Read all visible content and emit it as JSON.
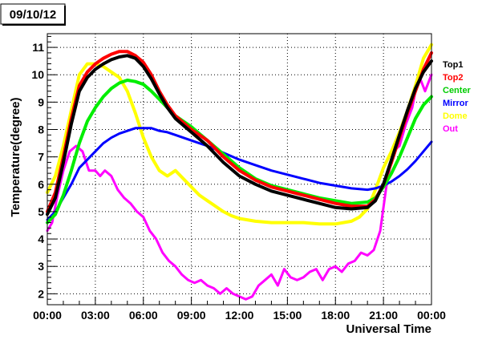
{
  "chart_data": {
    "type": "line",
    "title": "09/10/12",
    "xlabel": "Universal Time",
    "ylabel": "Temperature(degree)",
    "xlim": [
      0,
      24
    ],
    "ylim": [
      1.6,
      11.5
    ],
    "grid": true,
    "legend_position": "right",
    "x_ticks": [
      {
        "v": 0,
        "label": "00:00"
      },
      {
        "v": 3,
        "label": "03:00"
      },
      {
        "v": 6,
        "label": "06:00"
      },
      {
        "v": 9,
        "label": "09:00"
      },
      {
        "v": 12,
        "label": "12:00"
      },
      {
        "v": 15,
        "label": "15:00"
      },
      {
        "v": 18,
        "label": "18:00"
      },
      {
        "v": 21,
        "label": "21:00"
      },
      {
        "v": 24,
        "label": "00:00"
      }
    ],
    "y_ticks": [
      {
        "v": 2,
        "label": "2"
      },
      {
        "v": 3,
        "label": "3"
      },
      {
        "v": 4,
        "label": "4"
      },
      {
        "v": 5,
        "label": "5"
      },
      {
        "v": 6,
        "label": "6"
      },
      {
        "v": 7,
        "label": "7"
      },
      {
        "v": 8,
        "label": "8"
      },
      {
        "v": 9,
        "label": "9"
      },
      {
        "v": 10,
        "label": "10"
      },
      {
        "v": 11,
        "label": "11"
      }
    ],
    "series": [
      {
        "name": "Out",
        "color": "#ff00ff",
        "width": 3,
        "x": [
          0,
          0.3,
          0.6,
          1.0,
          1.4,
          1.8,
          2.2,
          2.6,
          3.0,
          3.3,
          3.6,
          4.0,
          4.4,
          4.8,
          5.2,
          5.6,
          6.0,
          6.4,
          6.8,
          7.2,
          7.6,
          8.0,
          8.4,
          8.8,
          9.2,
          9.6,
          10.0,
          10.4,
          10.8,
          11.2,
          11.6,
          12.0,
          12.4,
          12.8,
          13.2,
          13.6,
          14.0,
          14.4,
          14.8,
          15.2,
          15.6,
          16.0,
          16.4,
          16.8,
          17.2,
          17.6,
          18.0,
          18.4,
          18.8,
          19.2,
          19.6,
          20.0,
          20.4,
          20.8,
          21.2,
          21.6,
          22.0,
          22.4,
          22.8,
          23.2,
          23.6,
          24.0
        ],
        "y": [
          4.3,
          4.6,
          5.5,
          6.5,
          7.2,
          7.4,
          7.2,
          6.5,
          6.5,
          6.3,
          6.5,
          6.3,
          5.8,
          5.5,
          5.3,
          5.0,
          4.8,
          4.3,
          4.0,
          3.5,
          3.2,
          3.0,
          2.7,
          2.5,
          2.4,
          2.5,
          2.3,
          2.2,
          2.0,
          2.2,
          2.0,
          1.9,
          1.8,
          1.9,
          2.3,
          2.5,
          2.7,
          2.3,
          2.9,
          2.6,
          2.5,
          2.6,
          2.8,
          2.9,
          2.5,
          2.9,
          3.0,
          2.8,
          3.1,
          3.2,
          3.5,
          3.4,
          3.6,
          4.3,
          6.0,
          7.2,
          7.4,
          8.2,
          8.8,
          10.0,
          9.4,
          10.0
        ]
      },
      {
        "name": "Dome",
        "color": "#ffff00",
        "width": 4,
        "x": [
          0,
          0.5,
          1.0,
          1.5,
          2.0,
          2.5,
          3.0,
          3.5,
          4.0,
          4.5,
          5.0,
          5.5,
          6.0,
          6.5,
          7.0,
          7.5,
          8.0,
          8.5,
          9.0,
          9.5,
          10.0,
          10.5,
          11.0,
          11.5,
          12.0,
          13.0,
          14.0,
          15.0,
          16.0,
          17.0,
          18.0,
          19.0,
          19.5,
          20.0,
          20.5,
          21.0,
          21.5,
          22.0,
          22.5,
          23.0,
          23.5,
          24.0
        ],
        "y": [
          5.7,
          6.3,
          7.4,
          8.7,
          10.0,
          10.4,
          10.4,
          10.3,
          10.1,
          9.9,
          9.4,
          8.6,
          7.7,
          7.0,
          6.5,
          6.3,
          6.5,
          6.2,
          5.9,
          5.6,
          5.4,
          5.2,
          5.0,
          4.85,
          4.75,
          4.65,
          4.6,
          4.6,
          4.6,
          4.55,
          4.55,
          4.65,
          4.8,
          5.1,
          5.8,
          6.6,
          7.2,
          7.9,
          8.7,
          9.6,
          10.6,
          11.1
        ]
      },
      {
        "name": "Mirror",
        "color": "#0000ff",
        "width": 3,
        "x": [
          0,
          0.5,
          1.0,
          1.5,
          2.0,
          2.5,
          3.0,
          3.5,
          4.0,
          4.5,
          5.0,
          5.5,
          6.0,
          6.5,
          7.0,
          7.5,
          8.0,
          9.0,
          10.0,
          11.0,
          12.0,
          13.0,
          14.0,
          15.0,
          16.0,
          17.0,
          18.0,
          19.0,
          20.0,
          20.5,
          21.0,
          21.5,
          22.0,
          22.5,
          23.0,
          23.5,
          24.0
        ],
        "y": [
          4.7,
          5.0,
          5.5,
          6.0,
          6.6,
          6.9,
          7.2,
          7.5,
          7.7,
          7.85,
          7.95,
          8.05,
          8.05,
          8.05,
          7.95,
          7.9,
          7.8,
          7.6,
          7.4,
          7.15,
          6.9,
          6.7,
          6.5,
          6.35,
          6.2,
          6.05,
          5.95,
          5.85,
          5.8,
          5.85,
          5.95,
          6.1,
          6.3,
          6.55,
          6.85,
          7.2,
          7.55
        ]
      },
      {
        "name": "Center",
        "color": "#00ee00",
        "width": 4,
        "x": [
          0,
          0.5,
          1.0,
          1.5,
          2.0,
          2.5,
          3.0,
          3.5,
          4.0,
          4.5,
          5.0,
          5.5,
          6.0,
          6.5,
          7.0,
          7.5,
          8.0,
          9.0,
          10.0,
          11.0,
          12.0,
          13.0,
          14.0,
          15.0,
          16.0,
          17.0,
          18.0,
          19.0,
          20.0,
          20.5,
          21.0,
          21.5,
          22.0,
          22.5,
          23.0,
          23.5,
          24.0
        ],
        "y": [
          4.6,
          4.9,
          5.6,
          6.5,
          7.5,
          8.3,
          8.8,
          9.2,
          9.5,
          9.7,
          9.8,
          9.75,
          9.65,
          9.4,
          9.1,
          8.8,
          8.5,
          8.1,
          7.6,
          7.1,
          6.6,
          6.2,
          5.95,
          5.8,
          5.65,
          5.5,
          5.4,
          5.3,
          5.35,
          5.5,
          5.9,
          6.4,
          7.0,
          7.7,
          8.4,
          8.9,
          9.2
        ]
      },
      {
        "name": "Top2",
        "color": "#ff0000",
        "width": 4,
        "x": [
          0,
          0.5,
          1.0,
          1.5,
          2.0,
          2.5,
          3.0,
          3.5,
          4.0,
          4.5,
          5.0,
          5.5,
          6.0,
          6.5,
          7.0,
          7.5,
          8.0,
          9.0,
          10.0,
          11.0,
          12.0,
          13.0,
          14.0,
          15.0,
          16.0,
          17.0,
          18.0,
          19.0,
          20.0,
          20.5,
          21.0,
          21.5,
          22.0,
          22.5,
          23.0,
          23.5,
          24.0
        ],
        "y": [
          5.0,
          5.7,
          7.0,
          8.4,
          9.6,
          10.1,
          10.4,
          10.6,
          10.75,
          10.85,
          10.85,
          10.7,
          10.45,
          10.0,
          9.4,
          8.9,
          8.5,
          8.0,
          7.6,
          7.0,
          6.5,
          6.15,
          5.9,
          5.75,
          5.6,
          5.45,
          5.3,
          5.2,
          5.2,
          5.45,
          6.0,
          6.8,
          7.7,
          8.6,
          9.4,
          10.2,
          10.8
        ]
      },
      {
        "name": "Top1",
        "color": "#000000",
        "width": 4,
        "x": [
          0,
          0.5,
          1.0,
          1.5,
          2.0,
          2.5,
          3.0,
          3.5,
          4.0,
          4.5,
          5.0,
          5.5,
          6.0,
          6.5,
          7.0,
          7.5,
          8.0,
          9.0,
          10.0,
          11.0,
          12.0,
          13.0,
          14.0,
          15.0,
          16.0,
          17.0,
          18.0,
          19.0,
          20.0,
          20.5,
          21.0,
          21.5,
          22.0,
          22.5,
          23.0,
          23.5,
          24.0
        ],
        "y": [
          4.9,
          5.5,
          6.8,
          8.2,
          9.4,
          9.9,
          10.2,
          10.4,
          10.55,
          10.65,
          10.7,
          10.6,
          10.3,
          9.85,
          9.3,
          8.8,
          8.4,
          7.9,
          7.4,
          6.8,
          6.3,
          6.0,
          5.75,
          5.6,
          5.45,
          5.3,
          5.15,
          5.1,
          5.15,
          5.4,
          6.0,
          6.9,
          7.8,
          8.7,
          9.5,
          10.1,
          10.5
        ]
      }
    ],
    "legend": [
      {
        "label": "Top1",
        "color": "#000000"
      },
      {
        "label": "Top2",
        "color": "#ff0000"
      },
      {
        "label": "Center",
        "color": "#00cc00"
      },
      {
        "label": "Mirror",
        "color": "#0000ff"
      },
      {
        "label": "Dome",
        "color": "#ffff00"
      },
      {
        "label": "Out",
        "color": "#ff00ff"
      }
    ]
  }
}
